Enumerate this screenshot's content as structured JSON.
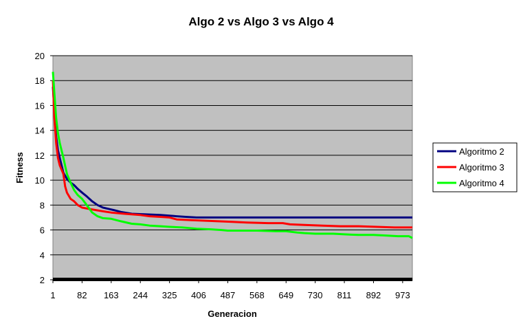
{
  "chart_data": {
    "type": "line",
    "title": "Algo 2 vs Algo 3 vs Algo 4",
    "xlabel": "Generacion",
    "ylabel": "Fitness",
    "x_ticks": [
      "1",
      "82",
      "163",
      "244",
      "325",
      "406",
      "487",
      "568",
      "649",
      "730",
      "811",
      "892",
      "973"
    ],
    "y_ticks": [
      "2",
      "4",
      "6",
      "8",
      "10",
      "12",
      "14",
      "16",
      "18",
      "20"
    ],
    "xlim": [
      1,
      1000
    ],
    "ylim": [
      2,
      20
    ],
    "grid": "horizontal",
    "legend_position": "right",
    "plot_background": "#c0c0c0",
    "series": [
      {
        "name": "Algoritmo 2",
        "color": "#000080",
        "points": [
          [
            1,
            17.5
          ],
          [
            5,
            15.5
          ],
          [
            10,
            13.5
          ],
          [
            15,
            12.4
          ],
          [
            20,
            11.8
          ],
          [
            30,
            10.6
          ],
          [
            40,
            10.1
          ],
          [
            50,
            9.8
          ],
          [
            60,
            9.6
          ],
          [
            70,
            9.3
          ],
          [
            82,
            9.0
          ],
          [
            95,
            8.7
          ],
          [
            110,
            8.3
          ],
          [
            125,
            8.0
          ],
          [
            140,
            7.8
          ],
          [
            155,
            7.7
          ],
          [
            170,
            7.6
          ],
          [
            190,
            7.45
          ],
          [
            220,
            7.3
          ],
          [
            260,
            7.25
          ],
          [
            300,
            7.2
          ],
          [
            325,
            7.15
          ],
          [
            345,
            7.1
          ],
          [
            370,
            7.05
          ],
          [
            400,
            7.0
          ],
          [
            500,
            7.0
          ],
          [
            700,
            7.0
          ],
          [
            900,
            7.0
          ],
          [
            1000,
            7.0
          ]
        ]
      },
      {
        "name": "Algoritmo 3",
        "color": "#ff0000",
        "points": [
          [
            1,
            18.0
          ],
          [
            5,
            15.0
          ],
          [
            10,
            13.0
          ],
          [
            15,
            11.8
          ],
          [
            20,
            11.2
          ],
          [
            30,
            10.5
          ],
          [
            35,
            9.5
          ],
          [
            40,
            9.0
          ],
          [
            50,
            8.5
          ],
          [
            60,
            8.3
          ],
          [
            70,
            8.0
          ],
          [
            82,
            7.8
          ],
          [
            100,
            7.7
          ],
          [
            120,
            7.6
          ],
          [
            140,
            7.5
          ],
          [
            163,
            7.4
          ],
          [
            200,
            7.3
          ],
          [
            244,
            7.2
          ],
          [
            270,
            7.1
          ],
          [
            300,
            7.05
          ],
          [
            325,
            7.0
          ],
          [
            345,
            6.85
          ],
          [
            380,
            6.8
          ],
          [
            420,
            6.75
          ],
          [
            460,
            6.7
          ],
          [
            500,
            6.65
          ],
          [
            540,
            6.6
          ],
          [
            600,
            6.55
          ],
          [
            640,
            6.55
          ],
          [
            660,
            6.45
          ],
          [
            700,
            6.4
          ],
          [
            750,
            6.35
          ],
          [
            800,
            6.3
          ],
          [
            850,
            6.3
          ],
          [
            900,
            6.25
          ],
          [
            950,
            6.2
          ],
          [
            1000,
            6.2
          ]
        ]
      },
      {
        "name": "Algoritmo 4",
        "color": "#00ff00",
        "points": [
          [
            1,
            18.7
          ],
          [
            5,
            17.0
          ],
          [
            10,
            15.0
          ],
          [
            15,
            13.8
          ],
          [
            20,
            13.0
          ],
          [
            30,
            11.8
          ],
          [
            40,
            10.5
          ],
          [
            50,
            9.8
          ],
          [
            60,
            9.2
          ],
          [
            70,
            8.8
          ],
          [
            82,
            8.5
          ],
          [
            95,
            8.0
          ],
          [
            110,
            7.4
          ],
          [
            125,
            7.1
          ],
          [
            140,
            6.95
          ],
          [
            163,
            6.9
          ],
          [
            190,
            6.7
          ],
          [
            220,
            6.5
          ],
          [
            244,
            6.45
          ],
          [
            270,
            6.35
          ],
          [
            300,
            6.3
          ],
          [
            325,
            6.25
          ],
          [
            360,
            6.2
          ],
          [
            400,
            6.1
          ],
          [
            440,
            6.05
          ],
          [
            470,
            6.0
          ],
          [
            487,
            5.95
          ],
          [
            520,
            5.95
          ],
          [
            568,
            5.95
          ],
          [
            620,
            5.9
          ],
          [
            649,
            5.9
          ],
          [
            680,
            5.8
          ],
          [
            700,
            5.75
          ],
          [
            730,
            5.7
          ],
          [
            780,
            5.7
          ],
          [
            811,
            5.65
          ],
          [
            850,
            5.6
          ],
          [
            892,
            5.6
          ],
          [
            930,
            5.55
          ],
          [
            960,
            5.5
          ],
          [
            990,
            5.5
          ],
          [
            1000,
            5.35
          ]
        ]
      }
    ]
  }
}
